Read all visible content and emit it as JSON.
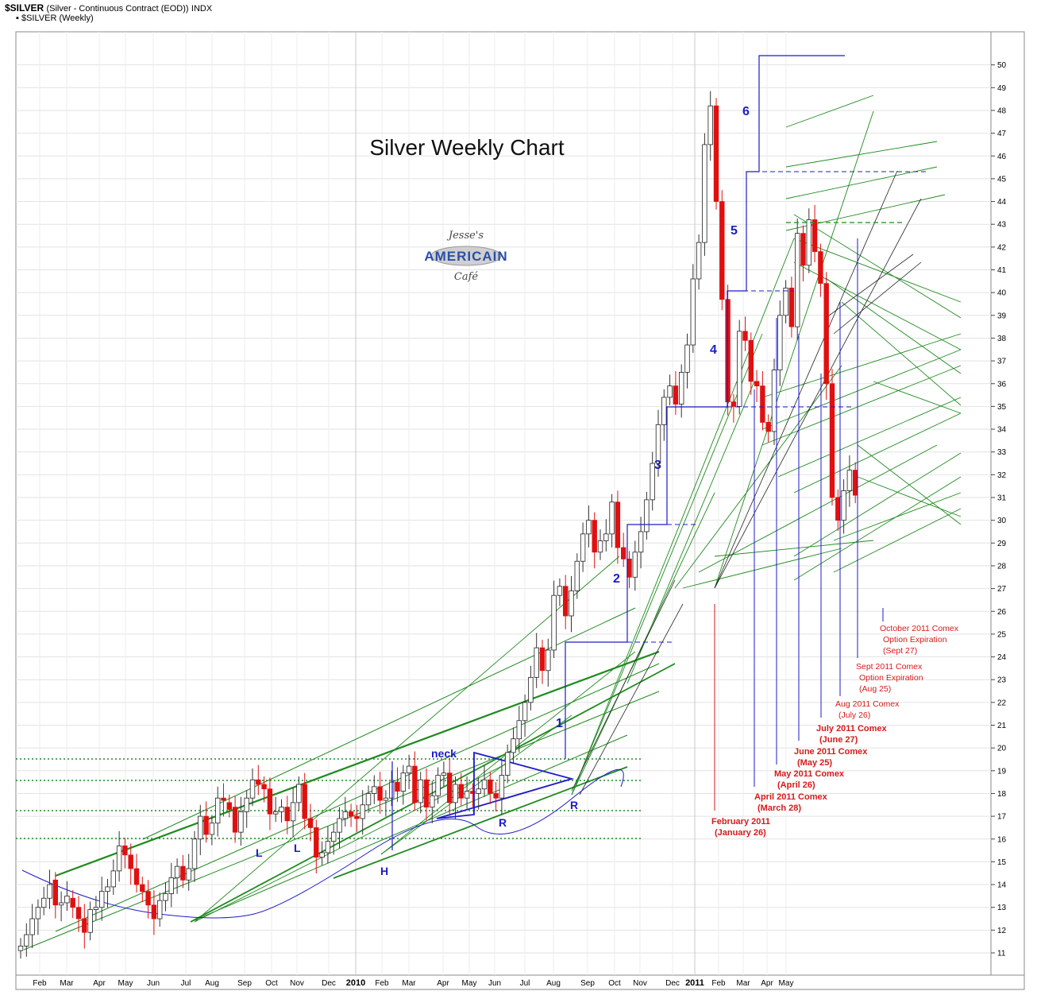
{
  "header": {
    "symbol": "$SILVER",
    "description": "(Silver - Continuous Contract (EOD))",
    "exchange": "INDX",
    "series_label": "$SILVER (Weekly)"
  },
  "logo": {
    "line1": "Jesse's",
    "line2": "AMERICAIN",
    "line3": "Café"
  },
  "colors": {
    "up_candle": "#ffffff",
    "down_candle": "#e01010",
    "channel": "#1e8a1e",
    "wave": "#1c1cc8",
    "annotation": "#d61a1a"
  },
  "chart_data": {
    "type": "candlestick",
    "title": "Silver Weekly Chart",
    "y_axis": {
      "ticks": [
        11,
        12,
        13,
        14,
        15,
        16,
        17,
        18,
        19,
        20,
        21,
        22,
        23,
        24,
        25,
        26,
        27,
        28,
        29,
        30,
        31,
        32,
        33,
        34,
        35,
        36,
        37,
        38,
        39,
        40,
        41,
        42,
        43,
        44,
        45,
        46,
        47,
        48,
        49,
        50
      ],
      "ylim": [
        10.5,
        50.3
      ],
      "side": "right"
    },
    "x_axis": {
      "ticks": [
        "Feb",
        "Mar",
        "Apr",
        "May",
        "Jun",
        "Jul",
        "Aug",
        "Sep",
        "Oct",
        "Nov",
        "Dec",
        "2010",
        "Feb",
        "Mar",
        "Apr",
        "May",
        "Jun",
        "Jul",
        "Aug",
        "Sep",
        "Oct",
        "Nov",
        "Dec",
        "2011",
        "Feb",
        "Mar",
        "Apr",
        "May"
      ],
      "year_ticks": [
        "2010",
        "2011"
      ]
    },
    "grid": true,
    "candles": [
      {
        "o": 11.1,
        "c": 11.3
      },
      {
        "o": 11.3,
        "c": 11.8
      },
      {
        "o": 11.8,
        "c": 12.5
      },
      {
        "o": 12.5,
        "c": 13.0
      },
      {
        "o": 13.0,
        "c": 13.4
      },
      {
        "o": 13.4,
        "c": 14.0
      },
      {
        "o": 14.2,
        "c": 13.1
      },
      {
        "o": 13.1,
        "c": 13.2
      },
      {
        "o": 13.2,
        "c": 13.5
      },
      {
        "o": 13.4,
        "c": 13.0
      },
      {
        "o": 13.0,
        "c": 12.5
      },
      {
        "o": 12.5,
        "c": 11.9
      },
      {
        "o": 11.9,
        "c": 12.9
      },
      {
        "o": 12.9,
        "c": 13.0
      },
      {
        "o": 13.0,
        "c": 13.7
      },
      {
        "o": 13.7,
        "c": 13.9
      },
      {
        "o": 13.9,
        "c": 14.6
      },
      {
        "o": 14.6,
        "c": 15.7
      },
      {
        "o": 15.7,
        "c": 15.3
      },
      {
        "o": 15.3,
        "c": 14.7
      },
      {
        "o": 14.7,
        "c": 14.0
      },
      {
        "o": 14.0,
        "c": 13.7
      },
      {
        "o": 13.7,
        "c": 13.1
      },
      {
        "o": 13.1,
        "c": 12.5
      },
      {
        "o": 12.5,
        "c": 13.3
      },
      {
        "o": 13.3,
        "c": 13.6
      },
      {
        "o": 13.6,
        "c": 14.3
      },
      {
        "o": 14.3,
        "c": 14.8
      },
      {
        "o": 14.8,
        "c": 14.2
      },
      {
        "o": 14.2,
        "c": 14.7
      },
      {
        "o": 14.7,
        "c": 16.0
      },
      {
        "o": 16.0,
        "c": 17.0
      },
      {
        "o": 17.0,
        "c": 16.2
      },
      {
        "o": 16.2,
        "c": 16.7
      },
      {
        "o": 16.7,
        "c": 17.8
      },
      {
        "o": 17.8,
        "c": 17.7
      },
      {
        "o": 17.6,
        "c": 17.3
      },
      {
        "o": 17.4,
        "c": 16.3
      },
      {
        "o": 16.3,
        "c": 17.2
      },
      {
        "o": 17.2,
        "c": 17.8
      },
      {
        "o": 17.8,
        "c": 18.6
      },
      {
        "o": 18.6,
        "c": 18.4
      },
      {
        "o": 18.4,
        "c": 18.2
      },
      {
        "o": 18.2,
        "c": 17.1
      },
      {
        "o": 17.1,
        "c": 17.2
      },
      {
        "o": 17.2,
        "c": 17.4
      },
      {
        "o": 17.4,
        "c": 16.8
      },
      {
        "o": 16.8,
        "c": 17.6
      },
      {
        "o": 17.6,
        "c": 18.4
      },
      {
        "o": 18.4,
        "c": 16.9
      },
      {
        "o": 16.9,
        "c": 16.5
      },
      {
        "o": 16.5,
        "c": 15.2
      },
      {
        "o": 15.2,
        "c": 15.4
      },
      {
        "o": 15.4,
        "c": 15.9
      },
      {
        "o": 15.9,
        "c": 16.3
      },
      {
        "o": 16.3,
        "c": 16.9
      },
      {
        "o": 16.9,
        "c": 17.2
      },
      {
        "o": 17.2,
        "c": 17.0
      },
      {
        "o": 17.0,
        "c": 16.9
      },
      {
        "o": 16.9,
        "c": 17.5
      },
      {
        "o": 17.5,
        "c": 18.0
      },
      {
        "o": 18.0,
        "c": 18.3
      },
      {
        "o": 18.3,
        "c": 17.7
      },
      {
        "o": 17.7,
        "c": 17.8
      },
      {
        "o": 17.8,
        "c": 18.5
      },
      {
        "o": 18.5,
        "c": 18.1
      },
      {
        "o": 18.1,
        "c": 18.9
      },
      {
        "o": 18.9,
        "c": 19.2
      },
      {
        "o": 19.2,
        "c": 17.6
      },
      {
        "o": 17.6,
        "c": 18.6
      },
      {
        "o": 18.6,
        "c": 17.4
      },
      {
        "o": 17.4,
        "c": 17.9
      },
      {
        "o": 17.9,
        "c": 18.8
      },
      {
        "o": 18.8,
        "c": 18.9
      },
      {
        "o": 18.9,
        "c": 17.6
      },
      {
        "o": 17.6,
        "c": 18.4
      },
      {
        "o": 18.4,
        "c": 17.8
      },
      {
        "o": 17.8,
        "c": 18.1
      },
      {
        "o": 18.1,
        "c": 18.0
      },
      {
        "o": 18.0,
        "c": 18.2
      },
      {
        "o": 18.2,
        "c": 18.6
      },
      {
        "o": 18.6,
        "c": 18.0
      },
      {
        "o": 18.0,
        "c": 17.8
      },
      {
        "o": 17.8,
        "c": 18.8
      },
      {
        "o": 18.8,
        "c": 19.8
      },
      {
        "o": 19.8,
        "c": 20.4
      },
      {
        "o": 20.4,
        "c": 21.2
      },
      {
        "o": 21.2,
        "c": 22.0
      },
      {
        "o": 22.0,
        "c": 23.1
      },
      {
        "o": 23.1,
        "c": 24.4
      },
      {
        "o": 24.4,
        "c": 23.4
      },
      {
        "o": 23.4,
        "c": 24.3
      },
      {
        "o": 24.3,
        "c": 26.7
      },
      {
        "o": 26.7,
        "c": 27.1
      },
      {
        "o": 27.1,
        "c": 25.8
      },
      {
        "o": 25.8,
        "c": 26.9
      },
      {
        "o": 26.9,
        "c": 28.2
      },
      {
        "o": 28.2,
        "c": 29.4
      },
      {
        "o": 29.4,
        "c": 30.0
      },
      {
        "o": 30.0,
        "c": 28.6
      },
      {
        "o": 28.6,
        "c": 29.1
      },
      {
        "o": 29.1,
        "c": 29.4
      },
      {
        "o": 29.4,
        "c": 30.8
      },
      {
        "o": 30.8,
        "c": 28.8
      },
      {
        "o": 28.8,
        "c": 28.3
      },
      {
        "o": 28.3,
        "c": 27.5
      },
      {
        "o": 27.5,
        "c": 28.6
      },
      {
        "o": 28.6,
        "c": 29.5
      },
      {
        "o": 29.5,
        "c": 30.9
      },
      {
        "o": 30.9,
        "c": 32.5
      },
      {
        "o": 32.5,
        "c": 34.2
      },
      {
        "o": 34.2,
        "c": 35.4
      },
      {
        "o": 35.4,
        "c": 35.9
      },
      {
        "o": 35.9,
        "c": 35.1
      },
      {
        "o": 35.1,
        "c": 36.5
      },
      {
        "o": 36.5,
        "c": 37.7
      },
      {
        "o": 37.7,
        "c": 40.6
      },
      {
        "o": 40.6,
        "c": 42.2
      },
      {
        "o": 42.2,
        "c": 46.5
      },
      {
        "o": 46.5,
        "c": 48.2
      },
      {
        "o": 48.2,
        "c": 44.0
      },
      {
        "o": 44.0,
        "c": 39.7
      },
      {
        "o": 39.7,
        "c": 35.2
      },
      {
        "o": 35.2,
        "c": 35.0
      },
      {
        "o": 35.0,
        "c": 38.3
      },
      {
        "o": 38.3,
        "c": 37.9
      },
      {
        "o": 37.9,
        "c": 36.1
      },
      {
        "o": 36.1,
        "c": 35.9
      },
      {
        "o": 35.9,
        "c": 34.3
      },
      {
        "o": 34.3,
        "c": 33.9
      },
      {
        "o": 33.9,
        "c": 36.6
      },
      {
        "o": 36.6,
        "c": 39.0
      },
      {
        "o": 39.0,
        "c": 40.2
      },
      {
        "o": 40.2,
        "c": 38.5
      },
      {
        "o": 38.5,
        "c": 42.6
      },
      {
        "o": 42.6,
        "c": 41.2
      },
      {
        "o": 41.2,
        "c": 43.2
      },
      {
        "o": 43.2,
        "c": 41.8
      },
      {
        "o": 41.8,
        "c": 40.4
      },
      {
        "o": 40.4,
        "c": 36.0
      },
      {
        "o": 36.0,
        "c": 31.0
      },
      {
        "o": 31.0,
        "c": 30.0
      },
      {
        "o": 30.0,
        "c": 31.3
      },
      {
        "o": 31.3,
        "c": 32.2
      },
      {
        "o": 32.2,
        "c": 31.1
      }
    ],
    "wave_labels": [
      "1",
      "2",
      "3",
      "4",
      "5",
      "6"
    ],
    "pattern_labels": [
      "L",
      "L",
      "H",
      "R",
      "R",
      "neck"
    ],
    "annotations": [
      {
        "lines": [
          "February 2011",
          "(January 26)"
        ],
        "bold": true
      },
      {
        "lines": [
          "April 2011 Comex",
          "(March 28)"
        ],
        "bold": true
      },
      {
        "lines": [
          "May 2011 Comex",
          "(April 26)"
        ],
        "bold": true
      },
      {
        "lines": [
          "June 2011 Comex",
          "(May 25)"
        ],
        "bold": true
      },
      {
        "lines": [
          "July 2011 Comex",
          "(June 27)"
        ],
        "bold": true
      },
      {
        "lines": [
          "Aug 2011 Comex",
          "(July 26)"
        ],
        "bold": false
      },
      {
        "lines": [
          "Sept 2011 Comex",
          "Option Expiration",
          "(Aug 25)"
        ],
        "bold": false
      },
      {
        "lines": [
          "October 2011 Comex",
          "Option Expiration",
          "(Sept 27)"
        ],
        "bold": false
      }
    ]
  }
}
